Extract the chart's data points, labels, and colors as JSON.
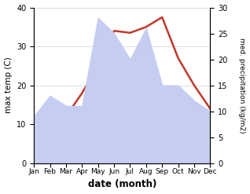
{
  "months": [
    "Jan",
    "Feb",
    "Mar",
    "Apr",
    "May",
    "Jun",
    "Jul",
    "Aug",
    "Sep",
    "Oct",
    "Nov",
    "Dec"
  ],
  "temp": [
    10.5,
    11.0,
    12.0,
    18.0,
    25.0,
    34.0,
    33.5,
    35.0,
    37.5,
    27.0,
    20.0,
    14.0
  ],
  "precip": [
    9.0,
    13.0,
    11.0,
    11.0,
    28.0,
    25.0,
    20.0,
    26.0,
    15.0,
    15.0,
    12.0,
    10.0
  ],
  "temp_color": "#c0392b",
  "precip_fill_color": "#c5cdf0",
  "temp_ylim": [
    0,
    40
  ],
  "precip_ylim": [
    0,
    30
  ],
  "temp_ylabel": "max temp (C)",
  "precip_ylabel": "med. precipitation (kg/m2)",
  "xlabel": "date (month)",
  "bg_color": "#ffffff"
}
